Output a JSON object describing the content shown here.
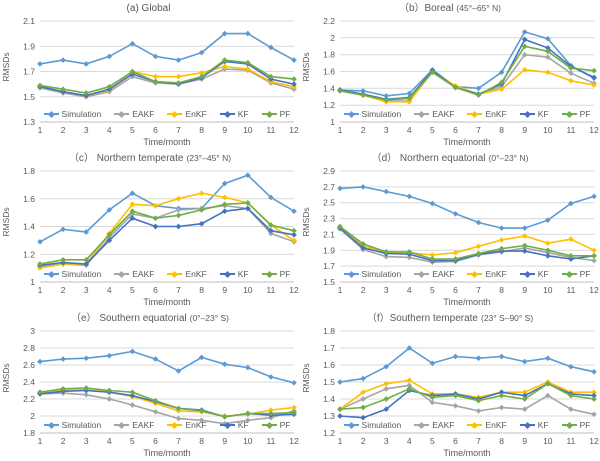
{
  "figure": {
    "ylabel": "RMSDs",
    "xlabel": "Time/month",
    "text_color": "#595959",
    "grid_color": "#D9D9D9",
    "axis_color": "#BFBFBF",
    "background": "#FFFFFF"
  },
  "legend": {
    "position": "bottom-inside-horizontal",
    "entries": [
      {
        "label": "Simulation",
        "color": "#5B9BD5"
      },
      {
        "label": "EAKF",
        "color": "#A5A5A5"
      },
      {
        "label": "EnKF",
        "color": "#FFC000"
      },
      {
        "label": "KF",
        "color": "#4472C4"
      },
      {
        "label": "PF",
        "color": "#70AD47"
      }
    ]
  },
  "chart_data": [
    {
      "type": "line",
      "title": "(a) Global",
      "title_sub": "",
      "x": [
        1,
        2,
        3,
        4,
        5,
        6,
        7,
        8,
        9,
        10,
        11,
        12
      ],
      "ylim": [
        1.3,
        2.1
      ],
      "ystep": 0.2,
      "grid": true,
      "series": [
        {
          "name": "Simulation",
          "values": [
            1.76,
            1.79,
            1.76,
            1.82,
            1.92,
            1.82,
            1.79,
            1.85,
            2.0,
            2.0,
            1.89,
            1.79
          ]
        },
        {
          "name": "EAKF",
          "values": [
            1.57,
            1.53,
            1.5,
            1.54,
            1.66,
            1.61,
            1.6,
            1.64,
            1.72,
            1.71,
            1.61,
            1.56
          ]
        },
        {
          "name": "EnKF",
          "values": [
            1.58,
            1.54,
            1.51,
            1.55,
            1.7,
            1.66,
            1.66,
            1.69,
            1.74,
            1.72,
            1.62,
            1.58
          ]
        },
        {
          "name": "KF",
          "values": [
            1.58,
            1.54,
            1.51,
            1.56,
            1.68,
            1.62,
            1.6,
            1.65,
            1.78,
            1.76,
            1.64,
            1.6
          ]
        },
        {
          "name": "PF",
          "values": [
            1.59,
            1.56,
            1.53,
            1.58,
            1.7,
            1.62,
            1.61,
            1.66,
            1.79,
            1.77,
            1.66,
            1.64
          ]
        }
      ]
    },
    {
      "type": "line",
      "title": "（b）Boreal",
      "title_sub": "(45°–65° N)",
      "x": [
        1,
        2,
        3,
        4,
        5,
        6,
        7,
        8,
        9,
        10,
        11,
        12
      ],
      "ylim": [
        1.0,
        2.2
      ],
      "ystep": 0.2,
      "grid": true,
      "series": [
        {
          "name": "Simulation",
          "values": [
            1.38,
            1.37,
            1.31,
            1.34,
            1.62,
            1.42,
            1.4,
            1.59,
            2.07,
            1.99,
            1.67,
            1.52
          ]
        },
        {
          "name": "EAKF",
          "values": [
            1.37,
            1.32,
            1.25,
            1.25,
            1.6,
            1.42,
            1.33,
            1.42,
            1.8,
            1.77,
            1.58,
            1.46
          ]
        },
        {
          "name": "EnKF",
          "values": [
            1.37,
            1.32,
            1.24,
            1.24,
            1.6,
            1.43,
            1.33,
            1.39,
            1.62,
            1.59,
            1.49,
            1.44
          ]
        },
        {
          "name": "KF",
          "values": [
            1.38,
            1.33,
            1.27,
            1.29,
            1.61,
            1.41,
            1.33,
            1.45,
            1.98,
            1.88,
            1.66,
            1.53
          ]
        },
        {
          "name": "PF",
          "values": [
            1.37,
            1.32,
            1.26,
            1.28,
            1.59,
            1.41,
            1.32,
            1.47,
            1.9,
            1.84,
            1.64,
            1.61
          ]
        }
      ]
    },
    {
      "type": "line",
      "title": "（c） Northern temperate",
      "title_sub": "(23°–45° N)",
      "x": [
        1,
        2,
        3,
        4,
        5,
        6,
        7,
        8,
        9,
        10,
        11,
        12
      ],
      "ylim": [
        1.0,
        1.8
      ],
      "ystep": 0.2,
      "grid": true,
      "series": [
        {
          "name": "Simulation",
          "values": [
            1.29,
            1.38,
            1.36,
            1.52,
            1.64,
            1.55,
            1.53,
            1.53,
            1.71,
            1.77,
            1.61,
            1.51
          ]
        },
        {
          "name": "EAKF",
          "values": [
            1.11,
            1.13,
            1.12,
            1.32,
            1.49,
            1.46,
            1.52,
            1.53,
            1.55,
            1.53,
            1.35,
            1.29
          ]
        },
        {
          "name": "EnKF",
          "values": [
            1.1,
            1.13,
            1.13,
            1.35,
            1.56,
            1.55,
            1.6,
            1.64,
            1.61,
            1.57,
            1.41,
            1.3
          ]
        },
        {
          "name": "KF",
          "values": [
            1.12,
            1.14,
            1.13,
            1.3,
            1.46,
            1.4,
            1.4,
            1.42,
            1.51,
            1.53,
            1.37,
            1.34
          ]
        },
        {
          "name": "PF",
          "values": [
            1.13,
            1.16,
            1.16,
            1.34,
            1.51,
            1.46,
            1.48,
            1.52,
            1.56,
            1.57,
            1.41,
            1.37
          ]
        }
      ]
    },
    {
      "type": "line",
      "title": "（d） Northern equatorial",
      "title_sub": "(0°–23° N)",
      "x": [
        1,
        2,
        3,
        4,
        5,
        6,
        7,
        8,
        9,
        10,
        11,
        12
      ],
      "ylim": [
        1.5,
        2.9
      ],
      "ystep": 0.2,
      "grid": true,
      "series": [
        {
          "name": "Simulation",
          "values": [
            2.68,
            2.7,
            2.64,
            2.58,
            2.49,
            2.36,
            2.25,
            2.18,
            2.18,
            2.28,
            2.49,
            2.58
          ]
        },
        {
          "name": "EAKF",
          "values": [
            2.17,
            1.91,
            1.82,
            1.81,
            1.75,
            1.76,
            1.84,
            1.88,
            1.93,
            1.87,
            1.81,
            1.77
          ]
        },
        {
          "name": "EnKF",
          "values": [
            2.19,
            1.95,
            1.88,
            1.87,
            1.84,
            1.87,
            1.95,
            2.03,
            2.08,
            1.99,
            2.04,
            1.9
          ]
        },
        {
          "name": "KF",
          "values": [
            2.18,
            1.93,
            1.86,
            1.85,
            1.77,
            1.77,
            1.85,
            1.89,
            1.89,
            1.83,
            1.79,
            1.83
          ]
        },
        {
          "name": "PF",
          "values": [
            2.2,
            1.98,
            1.88,
            1.88,
            1.79,
            1.79,
            1.86,
            1.92,
            1.96,
            1.9,
            1.83,
            1.83
          ]
        }
      ]
    },
    {
      "type": "line",
      "title": "（e） Southern equatorial",
      "title_sub": "(0°–23° S)",
      "x": [
        1,
        2,
        3,
        4,
        5,
        6,
        7,
        8,
        9,
        10,
        11,
        12
      ],
      "ylim": [
        1.8,
        3.0
      ],
      "ystep": 0.2,
      "grid": true,
      "series": [
        {
          "name": "Simulation",
          "values": [
            2.64,
            2.67,
            2.68,
            2.71,
            2.76,
            2.67,
            2.53,
            2.69,
            2.61,
            2.57,
            2.46,
            2.39
          ]
        },
        {
          "name": "EAKF",
          "values": [
            2.26,
            2.27,
            2.25,
            2.2,
            2.13,
            2.05,
            1.97,
            1.95,
            1.91,
            1.95,
            1.98,
            2.06
          ]
        },
        {
          "name": "EnKF",
          "values": [
            2.28,
            2.3,
            2.31,
            2.28,
            2.23,
            2.15,
            2.06,
            2.05,
            2.0,
            2.02,
            2.07,
            2.1
          ]
        },
        {
          "name": "KF",
          "values": [
            2.26,
            2.29,
            2.3,
            2.28,
            2.24,
            2.17,
            2.09,
            2.07,
            1.99,
            2.03,
            2.01,
            2.02
          ]
        },
        {
          "name": "PF",
          "values": [
            2.28,
            2.32,
            2.33,
            2.3,
            2.28,
            2.18,
            2.09,
            2.06,
            1.99,
            2.03,
            2.03,
            2.04
          ]
        }
      ]
    },
    {
      "type": "line",
      "title": "（f）Southern temperate",
      "title_sub": "(23° S–90° S)",
      "x": [
        1,
        2,
        3,
        4,
        5,
        6,
        7,
        8,
        9,
        10,
        11,
        12
      ],
      "ylim": [
        1.2,
        1.8
      ],
      "ystep": 0.1,
      "grid": true,
      "series": [
        {
          "name": "Simulation",
          "values": [
            1.5,
            1.52,
            1.59,
            1.7,
            1.61,
            1.65,
            1.64,
            1.65,
            1.62,
            1.64,
            1.59,
            1.56
          ]
        },
        {
          "name": "EAKF",
          "values": [
            1.34,
            1.4,
            1.46,
            1.48,
            1.38,
            1.36,
            1.33,
            1.35,
            1.34,
            1.42,
            1.34,
            1.31
          ]
        },
        {
          "name": "EnKF",
          "values": [
            1.34,
            1.44,
            1.49,
            1.51,
            1.43,
            1.43,
            1.41,
            1.44,
            1.44,
            1.5,
            1.44,
            1.44
          ]
        },
        {
          "name": "KF",
          "values": [
            1.3,
            1.29,
            1.34,
            1.45,
            1.42,
            1.43,
            1.4,
            1.44,
            1.42,
            1.49,
            1.43,
            1.42
          ]
        },
        {
          "name": "PF",
          "values": [
            1.34,
            1.35,
            1.4,
            1.46,
            1.41,
            1.42,
            1.39,
            1.42,
            1.4,
            1.49,
            1.42,
            1.4
          ]
        }
      ]
    }
  ]
}
